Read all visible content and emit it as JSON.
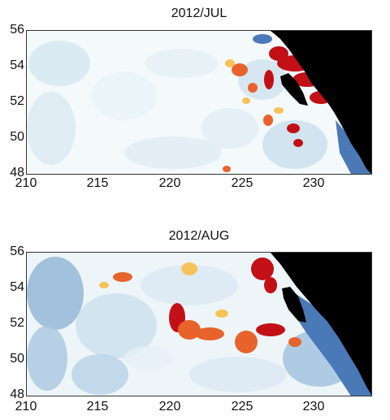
{
  "colors": {
    "land": "#000000",
    "background": "#ffffff",
    "high": "#c21016",
    "medium_high": "#e8632b",
    "medium": "#f6c25a",
    "low": "#c9e0ef",
    "very_low": "#4a79b8",
    "neutral": "#e8f2f7"
  },
  "panels": [
    {
      "title": "2012/JUL",
      "x_ticks": [
        "210",
        "215",
        "220",
        "225",
        "230"
      ],
      "y_ticks": [
        "56",
        "54",
        "52",
        "50",
        "48"
      ],
      "x_range": [
        210,
        234
      ],
      "y_range": [
        48,
        56
      ]
    },
    {
      "title": "2012/AUG",
      "x_ticks": [
        "210",
        "215",
        "220",
        "225",
        "230"
      ],
      "y_ticks": [
        "56",
        "54",
        "52",
        "50",
        "48"
      ],
      "x_range": [
        210,
        234
      ],
      "y_range": [
        48,
        56
      ]
    }
  ]
}
